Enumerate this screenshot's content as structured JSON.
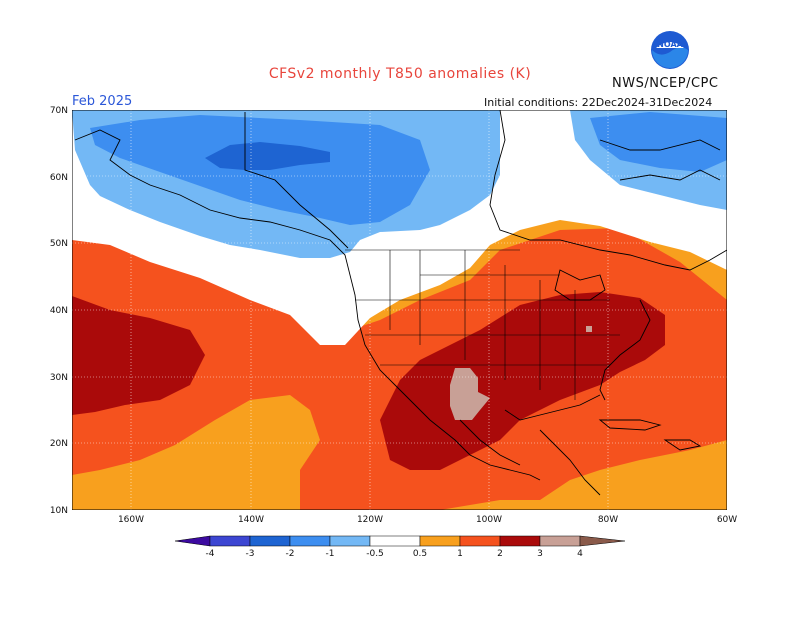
{
  "header": {
    "title": "CFSv2 monthly T850 anomalies (K)",
    "org": "NWS/NCEP/CPC",
    "month": "Feb 2025",
    "initial_conditions": "Initial conditions: 22Dec2024-31Dec2024",
    "logo_text": "NOAA"
  },
  "map": {
    "lat_labels": [
      "70N",
      "60N",
      "50N",
      "40N",
      "30N",
      "20N",
      "10N"
    ],
    "lon_labels": [
      "160W",
      "140W",
      "120W",
      "100W",
      "80W",
      "60W"
    ],
    "colors": {
      "ocean_white": "#ffffff",
      "neg_1": "#73b8f5",
      "neg_2": "#3d8ef0",
      "neg_3": "#1e64d2",
      "pos_05": "#f8a01e",
      "pos_1": "#f5521e",
      "pos_2": "#aa0a0a",
      "pos_3": "#c8a096"
    }
  },
  "colorbar": {
    "labels": [
      "-4",
      "-3",
      "-2",
      "-1",
      "-0.5",
      "0.5",
      "1",
      "2",
      "3",
      "4"
    ],
    "colors": [
      "#3c0aa0",
      "#3c46d2",
      "#1e64d2",
      "#3d8ef0",
      "#73b8f5",
      "#ffffff",
      "#f8a01e",
      "#f5521e",
      "#c81e0a",
      "#aa0a0a",
      "#c8a096",
      "#8a5a4a"
    ]
  }
}
